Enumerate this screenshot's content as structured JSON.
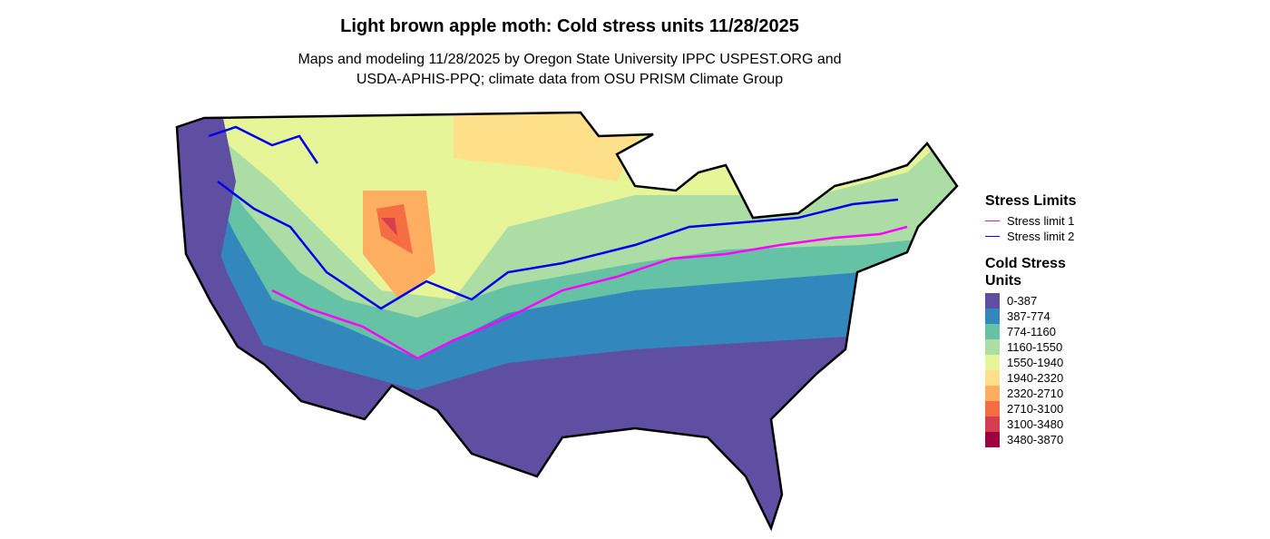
{
  "header": {
    "title": "Light brown apple moth: Cold stress units 11/28/2025",
    "subtitle": [
      "Maps and modeling 11/28/2025 by Oregon State University IPPC USPEST.ORG and",
      "USDA-APHIS-PPQ; climate data from OSU PRISM Climate Group"
    ]
  },
  "legend": {
    "lines": {
      "title": "Stress Limits",
      "items": [
        {
          "label": "Stress limit 1",
          "color": "#ff00ff"
        },
        {
          "label": "Stress limit 2",
          "color": "#0000ee"
        }
      ]
    },
    "fill": {
      "title": "Cold Stress Units",
      "items": [
        {
          "label": "0-387",
          "color": "#5e4fa2"
        },
        {
          "label": "387-774",
          "color": "#3288bd"
        },
        {
          "label": "774-1160",
          "color": "#66c2a5"
        },
        {
          "label": "1160-1550",
          "color": "#abdda4"
        },
        {
          "label": "1550-1940",
          "color": "#e6f598"
        },
        {
          "label": "1940-2320",
          "color": "#fee08b"
        },
        {
          "label": "2320-2710",
          "color": "#fdae61"
        },
        {
          "label": "2710-3100",
          "color": "#f46d43"
        },
        {
          "label": "3100-3480",
          "color": "#d53e4f"
        },
        {
          "label": "3480-3870",
          "color": "#9e0142"
        }
      ]
    }
  }
}
